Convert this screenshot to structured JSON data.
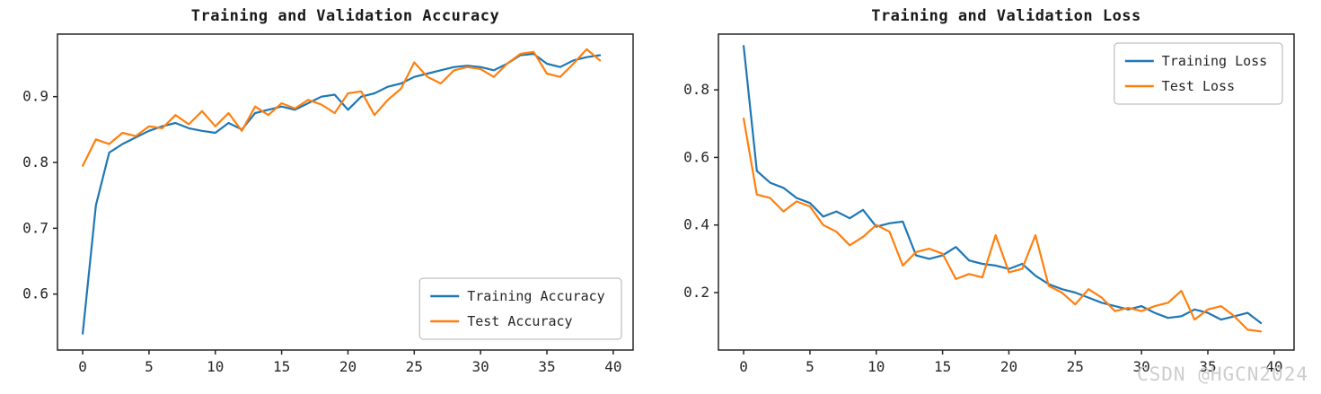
{
  "watermark": "CSDN @HGCN2024",
  "colors": {
    "train": "#1f77b4",
    "test": "#ff7f0e",
    "axis": "#262626",
    "legend_border": "#b0b0b0"
  },
  "chart_data": [
    {
      "type": "line",
      "title": "Training and Validation Accuracy",
      "xlabel": "",
      "ylabel": "",
      "x": [
        0,
        1,
        2,
        3,
        4,
        5,
        6,
        7,
        8,
        9,
        10,
        11,
        12,
        13,
        14,
        15,
        16,
        17,
        18,
        19,
        20,
        21,
        22,
        23,
        24,
        25,
        26,
        27,
        28,
        29,
        30,
        31,
        32,
        33,
        34,
        35,
        36,
        37,
        38,
        39
      ],
      "series": [
        {
          "name": "Training Accuracy",
          "color": "#1f77b4",
          "values": [
            0.54,
            0.735,
            0.815,
            0.828,
            0.838,
            0.848,
            0.855,
            0.86,
            0.852,
            0.848,
            0.845,
            0.86,
            0.85,
            0.875,
            0.88,
            0.885,
            0.88,
            0.89,
            0.9,
            0.903,
            0.88,
            0.9,
            0.905,
            0.915,
            0.92,
            0.93,
            0.935,
            0.94,
            0.945,
            0.947,
            0.945,
            0.94,
            0.95,
            0.963,
            0.965,
            0.95,
            0.945,
            0.955,
            0.96,
            0.963
          ]
        },
        {
          "name": "Test Accuracy",
          "color": "#ff7f0e",
          "values": [
            0.795,
            0.835,
            0.828,
            0.845,
            0.84,
            0.855,
            0.852,
            0.872,
            0.858,
            0.878,
            0.855,
            0.875,
            0.848,
            0.885,
            0.872,
            0.89,
            0.882,
            0.895,
            0.888,
            0.875,
            0.905,
            0.908,
            0.872,
            0.895,
            0.912,
            0.952,
            0.93,
            0.92,
            0.94,
            0.945,
            0.942,
            0.93,
            0.95,
            0.965,
            0.968,
            0.935,
            0.93,
            0.95,
            0.972,
            0.955
          ]
        }
      ],
      "xticks": [
        0,
        5,
        10,
        15,
        20,
        25,
        30,
        35,
        40
      ],
      "yticks": [
        0.6,
        0.7,
        0.8,
        0.9
      ],
      "xlim": [
        -1.9,
        41.5
      ],
      "ylim": [
        0.515,
        0.995
      ],
      "grid": false,
      "legend_loc": "lower right"
    },
    {
      "type": "line",
      "title": "Training and Validation Loss",
      "xlabel": "",
      "ylabel": "",
      "x": [
        0,
        1,
        2,
        3,
        4,
        5,
        6,
        7,
        8,
        9,
        10,
        11,
        12,
        13,
        14,
        15,
        16,
        17,
        18,
        19,
        20,
        21,
        22,
        23,
        24,
        25,
        26,
        27,
        28,
        29,
        30,
        31,
        32,
        33,
        34,
        35,
        36,
        37,
        38,
        39
      ],
      "series": [
        {
          "name": "Training Loss",
          "color": "#1f77b4",
          "values": [
            0.93,
            0.56,
            0.525,
            0.51,
            0.48,
            0.465,
            0.425,
            0.44,
            0.42,
            0.445,
            0.395,
            0.405,
            0.41,
            0.31,
            0.3,
            0.31,
            0.335,
            0.295,
            0.285,
            0.28,
            0.27,
            0.285,
            0.25,
            0.225,
            0.21,
            0.2,
            0.185,
            0.17,
            0.16,
            0.15,
            0.16,
            0.14,
            0.125,
            0.13,
            0.15,
            0.14,
            0.12,
            0.13,
            0.14,
            0.11
          ]
        },
        {
          "name": "Test Loss",
          "color": "#ff7f0e",
          "values": [
            0.715,
            0.49,
            0.48,
            0.44,
            0.47,
            0.455,
            0.4,
            0.38,
            0.34,
            0.365,
            0.4,
            0.38,
            0.28,
            0.32,
            0.33,
            0.315,
            0.24,
            0.255,
            0.245,
            0.37,
            0.26,
            0.27,
            0.37,
            0.22,
            0.2,
            0.165,
            0.21,
            0.185,
            0.145,
            0.155,
            0.145,
            0.16,
            0.17,
            0.205,
            0.12,
            0.15,
            0.16,
            0.13,
            0.09,
            0.085
          ]
        }
      ],
      "xticks": [
        0,
        5,
        10,
        15,
        20,
        25,
        30,
        35,
        40
      ],
      "yticks": [
        0.2,
        0.4,
        0.6,
        0.8
      ],
      "xlim": [
        -1.9,
        41.5
      ],
      "ylim": [
        0.03,
        0.965
      ],
      "grid": false,
      "legend_loc": "upper right"
    }
  ]
}
